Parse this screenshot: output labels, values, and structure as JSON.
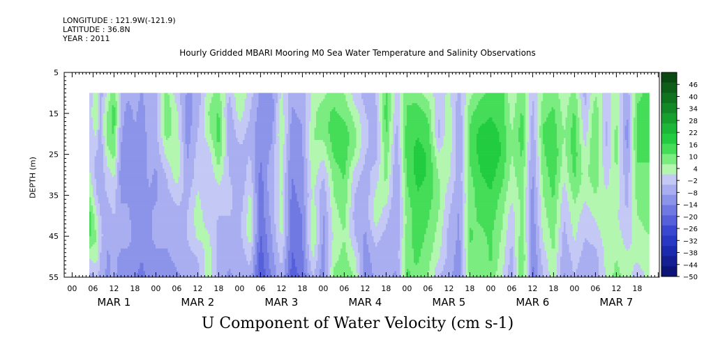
{
  "header": {
    "longitude": "LONGITUDE : 121.9W(-121.9)",
    "latitude": "LATITUDE : 36.8N",
    "year": "YEAR : 2011"
  },
  "chart_data": {
    "type": "heatmap",
    "title": "Hourly Gridded MBARI Mooring M0 Sea Water Temperature and Salinity Observations",
    "xlabel": "U Component of Water Velocity (cm s-1)",
    "ylabel": "DEPTH (m)",
    "ylim": [
      5,
      55
    ],
    "y_ticks": [
      5,
      15,
      25,
      35,
      45,
      55
    ],
    "y_reversed": true,
    "x_hour_ticks": [
      "00",
      "06",
      "12",
      "18",
      "00",
      "06",
      "12",
      "18",
      "00",
      "06",
      "12",
      "18",
      "00",
      "06",
      "12",
      "18",
      "00",
      "06",
      "12",
      "18",
      "00",
      "06",
      "12",
      "18",
      "00",
      "06",
      "12",
      "18"
    ],
    "x_day_labels": [
      "MAR  1",
      "MAR  2",
      "MAR  3",
      "MAR  4",
      "MAR  5",
      "MAR  6",
      "MAR  7"
    ],
    "data_depth_range": [
      10,
      55
    ],
    "colorbar_ticks": [
      46,
      40,
      34,
      28,
      22,
      16,
      10,
      4,
      -2,
      -8,
      -14,
      -20,
      -26,
      -32,
      -38,
      -44,
      -50
    ],
    "colorbar_colors": [
      "#0a4a12",
      "#0d5e18",
      "#10731f",
      "#138826",
      "#16a02d",
      "#1ab836",
      "#22cc40",
      "#45dd58",
      "#7aec80",
      "#b2f6b0",
      "#c4c8f4",
      "#a8aef0",
      "#8c94ea",
      "#7078e2",
      "#5560da",
      "#3a48d0",
      "#2838c4",
      "#1c2aae",
      "#141f94",
      "#0c1478"
    ],
    "profile_hours": [
      0,
      3,
      5,
      7,
      8,
      10,
      12,
      14,
      16,
      18,
      20,
      22,
      24,
      27,
      30,
      33,
      36,
      39,
      42,
      45,
      48,
      51,
      54,
      57,
      60,
      63,
      66,
      69,
      72,
      75,
      78,
      81,
      84,
      87,
      90,
      93,
      96,
      99,
      102,
      105,
      108,
      111,
      114,
      117,
      120,
      123,
      126,
      129,
      132,
      135,
      138,
      141,
      144,
      147,
      150,
      153,
      156,
      159,
      162,
      165
    ],
    "profiles": [
      [
        -6,
        -6,
        -7,
        -7,
        -8,
        -9,
        -10,
        -10,
        -12,
        -12
      ],
      [
        -3,
        -2,
        -4,
        -4,
        -5,
        8,
        10,
        4,
        -6,
        -8
      ],
      [
        -2,
        -1,
        -2,
        -4,
        2,
        6,
        14,
        12,
        2,
        -6
      ],
      [
        4,
        6,
        2,
        -4,
        -6,
        -4,
        2,
        6,
        4,
        -4
      ],
      [
        -8,
        -6,
        -8,
        -10,
        -8,
        -6,
        -4,
        -2,
        -4,
        -6
      ],
      [
        2,
        6,
        8,
        4,
        -2,
        -4,
        -6,
        -8,
        -10,
        -10
      ],
      [
        10,
        14,
        12,
        8,
        2,
        -2,
        -4,
        -6,
        -8,
        -8
      ],
      [
        -4,
        -6,
        -8,
        -10,
        -12,
        -10,
        -8,
        -8,
        -10,
        -12
      ],
      [
        -8,
        -12,
        -14,
        -14,
        -12,
        -10,
        -8,
        -8,
        -10,
        -12
      ],
      [
        -6,
        -8,
        -10,
        -10,
        -12,
        -14,
        -12,
        -10,
        -12,
        -14
      ],
      [
        -10,
        -12,
        -14,
        -14,
        -14,
        -12,
        -12,
        -12,
        -14,
        -16
      ],
      [
        -4,
        -6,
        -6,
        -8,
        -8,
        -10,
        -10,
        -10,
        -12,
        -12
      ],
      [
        -6,
        -6,
        -6,
        -8,
        -10,
        -10,
        -8,
        -8,
        -10,
        -10
      ],
      [
        8,
        10,
        8,
        2,
        -4,
        -6,
        -8,
        -8,
        -10,
        -12
      ],
      [
        -2,
        2,
        4,
        6,
        4,
        -2,
        -6,
        -8,
        -8,
        -10
      ],
      [
        -10,
        -12,
        -12,
        -10,
        -8,
        -6,
        -4,
        -4,
        -6,
        -8
      ],
      [
        -8,
        -6,
        -4,
        -2,
        -2,
        2,
        4,
        2,
        -4,
        -6
      ],
      [
        4,
        6,
        4,
        -2,
        -4,
        -4,
        -2,
        2,
        4,
        6
      ],
      [
        8,
        12,
        14,
        10,
        4,
        -2,
        -4,
        -6,
        -6,
        -8
      ],
      [
        -4,
        -8,
        -8,
        -6,
        -4,
        -2,
        -4,
        -6,
        -8,
        -10
      ],
      [
        6,
        4,
        -2,
        -6,
        -8,
        -8,
        -6,
        -6,
        -8,
        -8
      ],
      [
        -2,
        -4,
        -6,
        -4,
        -2,
        2,
        4,
        4,
        -2,
        -6
      ],
      [
        -10,
        -12,
        -14,
        -14,
        -16,
        -18,
        -18,
        -20,
        -22,
        -24
      ],
      [
        -12,
        -14,
        -12,
        -8,
        -6,
        -6,
        -8,
        -10,
        -12,
        -14
      ],
      [
        2,
        4,
        6,
        4,
        2,
        2,
        4,
        2,
        -2,
        -6
      ],
      [
        -8,
        -10,
        -12,
        -14,
        -14,
        -16,
        -18,
        -18,
        -20,
        -22
      ],
      [
        -6,
        -8,
        -10,
        -10,
        -12,
        -12,
        -14,
        -14,
        -16,
        -18
      ],
      [
        2,
        4,
        6,
        6,
        4,
        2,
        6,
        6,
        2,
        -4
      ],
      [
        4,
        10,
        8,
        2,
        -4,
        -8,
        -10,
        -10,
        -12,
        -12
      ],
      [
        10,
        12,
        14,
        12,
        8,
        6,
        4,
        2,
        4,
        8
      ],
      [
        6,
        10,
        14,
        14,
        12,
        10,
        8,
        6,
        8,
        10
      ],
      [
        -2,
        4,
        8,
        6,
        -2,
        -4,
        -6,
        -4,
        2,
        6
      ],
      [
        -6,
        -4,
        -2,
        -4,
        -6,
        -8,
        -8,
        -10,
        -12,
        -14
      ],
      [
        -4,
        -6,
        -8,
        -6,
        -2,
        2,
        4,
        -2,
        -6,
        -8
      ],
      [
        12,
        14,
        12,
        10,
        8,
        4,
        -2,
        -6,
        -8,
        -8
      ],
      [
        -2,
        -4,
        -6,
        -8,
        -10,
        -10,
        -10,
        -8,
        -8,
        -10
      ],
      [
        10,
        12,
        14,
        14,
        12,
        10,
        8,
        8,
        10,
        12
      ],
      [
        8,
        14,
        16,
        18,
        18,
        16,
        14,
        14,
        12,
        10
      ],
      [
        4,
        10,
        14,
        16,
        16,
        14,
        12,
        10,
        8,
        6
      ],
      [
        -2,
        -4,
        -6,
        2,
        6,
        8,
        6,
        4,
        2,
        -4
      ],
      [
        2,
        4,
        6,
        4,
        2,
        -2,
        -4,
        -6,
        -6,
        -8
      ],
      [
        -6,
        -8,
        -10,
        -10,
        -8,
        -8,
        -10,
        -10,
        -12,
        -12
      ],
      [
        4,
        10,
        12,
        12,
        10,
        8,
        10,
        12,
        10,
        8
      ],
      [
        10,
        14,
        18,
        18,
        16,
        14,
        12,
        10,
        8,
        6
      ],
      [
        12,
        16,
        18,
        20,
        18,
        16,
        14,
        12,
        12,
        10
      ],
      [
        14,
        14,
        16,
        16,
        14,
        10,
        8,
        6,
        4,
        2
      ],
      [
        2,
        4,
        6,
        6,
        4,
        2,
        -2,
        -4,
        -6,
        -8
      ],
      [
        10,
        12,
        14,
        12,
        10,
        8,
        8,
        10,
        12,
        12
      ],
      [
        -4,
        -6,
        -8,
        -10,
        -10,
        -12,
        -12,
        -14,
        -14,
        -16
      ],
      [
        6,
        10,
        12,
        10,
        8,
        6,
        4,
        2,
        -2,
        -4
      ],
      [
        10,
        12,
        14,
        16,
        14,
        12,
        10,
        8,
        6,
        4
      ],
      [
        2,
        4,
        6,
        4,
        2,
        -2,
        -4,
        -6,
        -8,
        -10
      ],
      [
        8,
        12,
        14,
        14,
        12,
        8,
        4,
        2,
        -2,
        -4
      ],
      [
        -6,
        -4,
        -2,
        2,
        4,
        2,
        -2,
        -4,
        -6,
        -8
      ],
      [
        6,
        10,
        12,
        12,
        10,
        6,
        2,
        -2,
        -6,
        -8
      ],
      [
        -2,
        -4,
        -6,
        -4,
        -2,
        2,
        4,
        4,
        2,
        2
      ],
      [
        4,
        6,
        8,
        8,
        6,
        4,
        2,
        4,
        6,
        8
      ],
      [
        -8,
        -10,
        -12,
        -10,
        -8,
        -6,
        -4,
        -2,
        2,
        4
      ],
      [
        10,
        12,
        14,
        12,
        10,
        8,
        6,
        4,
        2,
        -2
      ],
      [
        12,
        14,
        14,
        12,
        10,
        8,
        8,
        6,
        4,
        2
      ]
    ]
  }
}
